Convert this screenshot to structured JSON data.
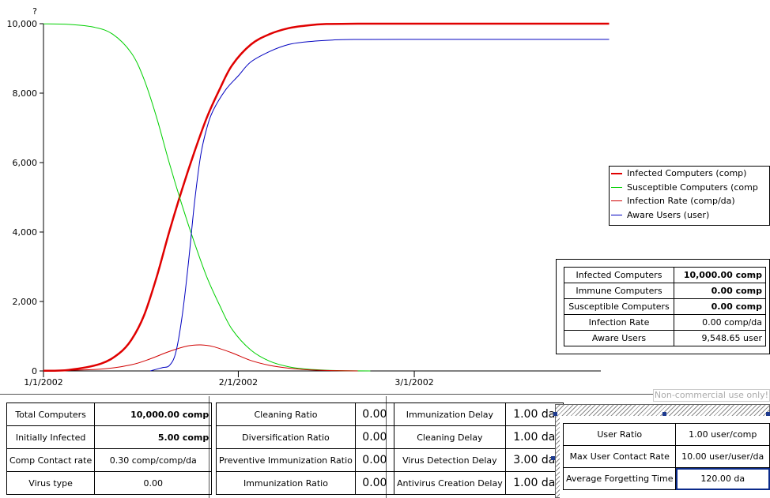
{
  "chart_data": {
    "type": "line",
    "y_unit_label": "?",
    "ylim": [
      0,
      10000
    ],
    "yticks": [
      "0",
      "2,000",
      "4,000",
      "6,000",
      "8,000",
      "10,000"
    ],
    "xticks": [
      "1/1/2002",
      "2/1/2002",
      "3/1/2002"
    ],
    "xlim": [
      "2002-01-01",
      "2002-04-01"
    ],
    "series": [
      {
        "name": "Infected Computers (comp)",
        "color": "#e00000",
        "width": 2.5,
        "x": [
          "2002-01-01",
          "2002-01-05",
          "2002-01-10",
          "2002-01-13",
          "2002-01-15",
          "2002-01-17",
          "2002-01-19",
          "2002-01-21",
          "2002-01-23",
          "2002-01-25",
          "2002-01-27",
          "2002-01-29",
          "2002-01-31",
          "2002-02-03",
          "2002-02-06",
          "2002-02-09",
          "2002-02-12",
          "2002-02-15",
          "2002-02-20",
          "2002-02-25",
          "2002-03-01",
          "2002-04-01"
        ],
        "y": [
          5,
          30,
          200,
          500,
          900,
          1600,
          2700,
          4000,
          5200,
          6300,
          7300,
          8100,
          8800,
          9400,
          9700,
          9870,
          9950,
          9990,
          10000,
          10000,
          10000,
          10000
        ]
      },
      {
        "name": "Susceptible Computers (comp",
        "color": "#00d000",
        "width": 1,
        "x": [
          "2002-01-01",
          "2002-01-05",
          "2002-01-09",
          "2002-01-12",
          "2002-01-15",
          "2002-01-17",
          "2002-01-19",
          "2002-01-21",
          "2002-01-23",
          "2002-01-25",
          "2002-01-27",
          "2002-01-29",
          "2002-01-31",
          "2002-02-03",
          "2002-02-06",
          "2002-02-09",
          "2002-02-12",
          "2002-02-15",
          "2002-02-18",
          "2002-02-22"
        ],
        "y": [
          9995,
          9980,
          9900,
          9700,
          9150,
          8400,
          7300,
          6000,
          4800,
          3700,
          2700,
          1900,
          1200,
          600,
          280,
          120,
          50,
          20,
          5,
          0
        ]
      },
      {
        "name": "Infection Rate (comp/da)",
        "color": "#d00000",
        "width": 1,
        "x": [
          "2002-01-01",
          "2002-01-10",
          "2002-01-15",
          "2002-01-18",
          "2002-01-21",
          "2002-01-24",
          "2002-01-26",
          "2002-01-28",
          "2002-01-31",
          "2002-02-03",
          "2002-02-06",
          "2002-02-09",
          "2002-02-12",
          "2002-02-16",
          "2002-02-20"
        ],
        "y": [
          0,
          50,
          180,
          350,
          560,
          720,
          750,
          700,
          520,
          300,
          160,
          80,
          35,
          10,
          0
        ]
      },
      {
        "name": "Aware Users (user)",
        "color": "#0000c0",
        "width": 1,
        "x": [
          "2002-01-18",
          "2002-01-19",
          "2002-01-20",
          "2002-01-21",
          "2002-01-22",
          "2002-01-23",
          "2002-01-24",
          "2002-01-25",
          "2002-01-26",
          "2002-01-27",
          "2002-01-28",
          "2002-01-30",
          "2002-02-01",
          "2002-02-03",
          "2002-02-06",
          "2002-02-09",
          "2002-02-12",
          "2002-02-16",
          "2002-02-20",
          "2002-03-01",
          "2002-04-01"
        ],
        "y": [
          0,
          50,
          100,
          150,
          500,
          1500,
          3000,
          4800,
          6200,
          7000,
          7500,
          8100,
          8500,
          8900,
          9200,
          9400,
          9480,
          9530,
          9545,
          9548,
          9548
        ]
      }
    ],
    "legend_position": "right"
  },
  "results": [
    {
      "label": "Infected Computers",
      "value": "10,000.00 comp",
      "bold": true
    },
    {
      "label": "Immune Computers",
      "value": "0.00 comp",
      "bold": true
    },
    {
      "label": "Susceptible Computers",
      "value": "0.00 comp",
      "bold": true
    },
    {
      "label": "Infection Rate",
      "value": "0.00 comp/da",
      "bold": false
    },
    {
      "label": "Aware Users",
      "value": "9,548.65 user",
      "bold": false
    }
  ],
  "panel1": [
    {
      "label": "Total Computers",
      "value": "10,000.00 comp"
    },
    {
      "label": "Initially Infected",
      "value": "5.00 comp"
    },
    {
      "label": "Comp Contact rate",
      "value": "0.30 comp/comp/da"
    },
    {
      "label": "Virus type",
      "value": "0.00"
    }
  ],
  "panel2": [
    {
      "label": "Cleaning Ratio",
      "value": "0.00"
    },
    {
      "label": "Diversification Ratio",
      "value": "0.00"
    },
    {
      "label": "Preventive Immunization Ratio",
      "value": "0.00"
    },
    {
      "label": "Immunization Ratio",
      "value": "0.00"
    }
  ],
  "panel3": [
    {
      "label": "Immunization Delay",
      "value": "1.00 da"
    },
    {
      "label": "Cleaning Delay",
      "value": "1.00 da"
    },
    {
      "label": "Virus Detection Delay",
      "value": "3.00 da"
    },
    {
      "label": "Antivirus Creation Delay",
      "value": "1.00 da"
    }
  ],
  "panel4": [
    {
      "label": "User Ratio",
      "value": "1.00 user/comp"
    },
    {
      "label": "Max User Contact Rate",
      "value": "10.00 user/user/da"
    },
    {
      "label": "Average Forgetting Time",
      "value": "120.00 da"
    }
  ],
  "watermark": "Non-commercial use only!"
}
